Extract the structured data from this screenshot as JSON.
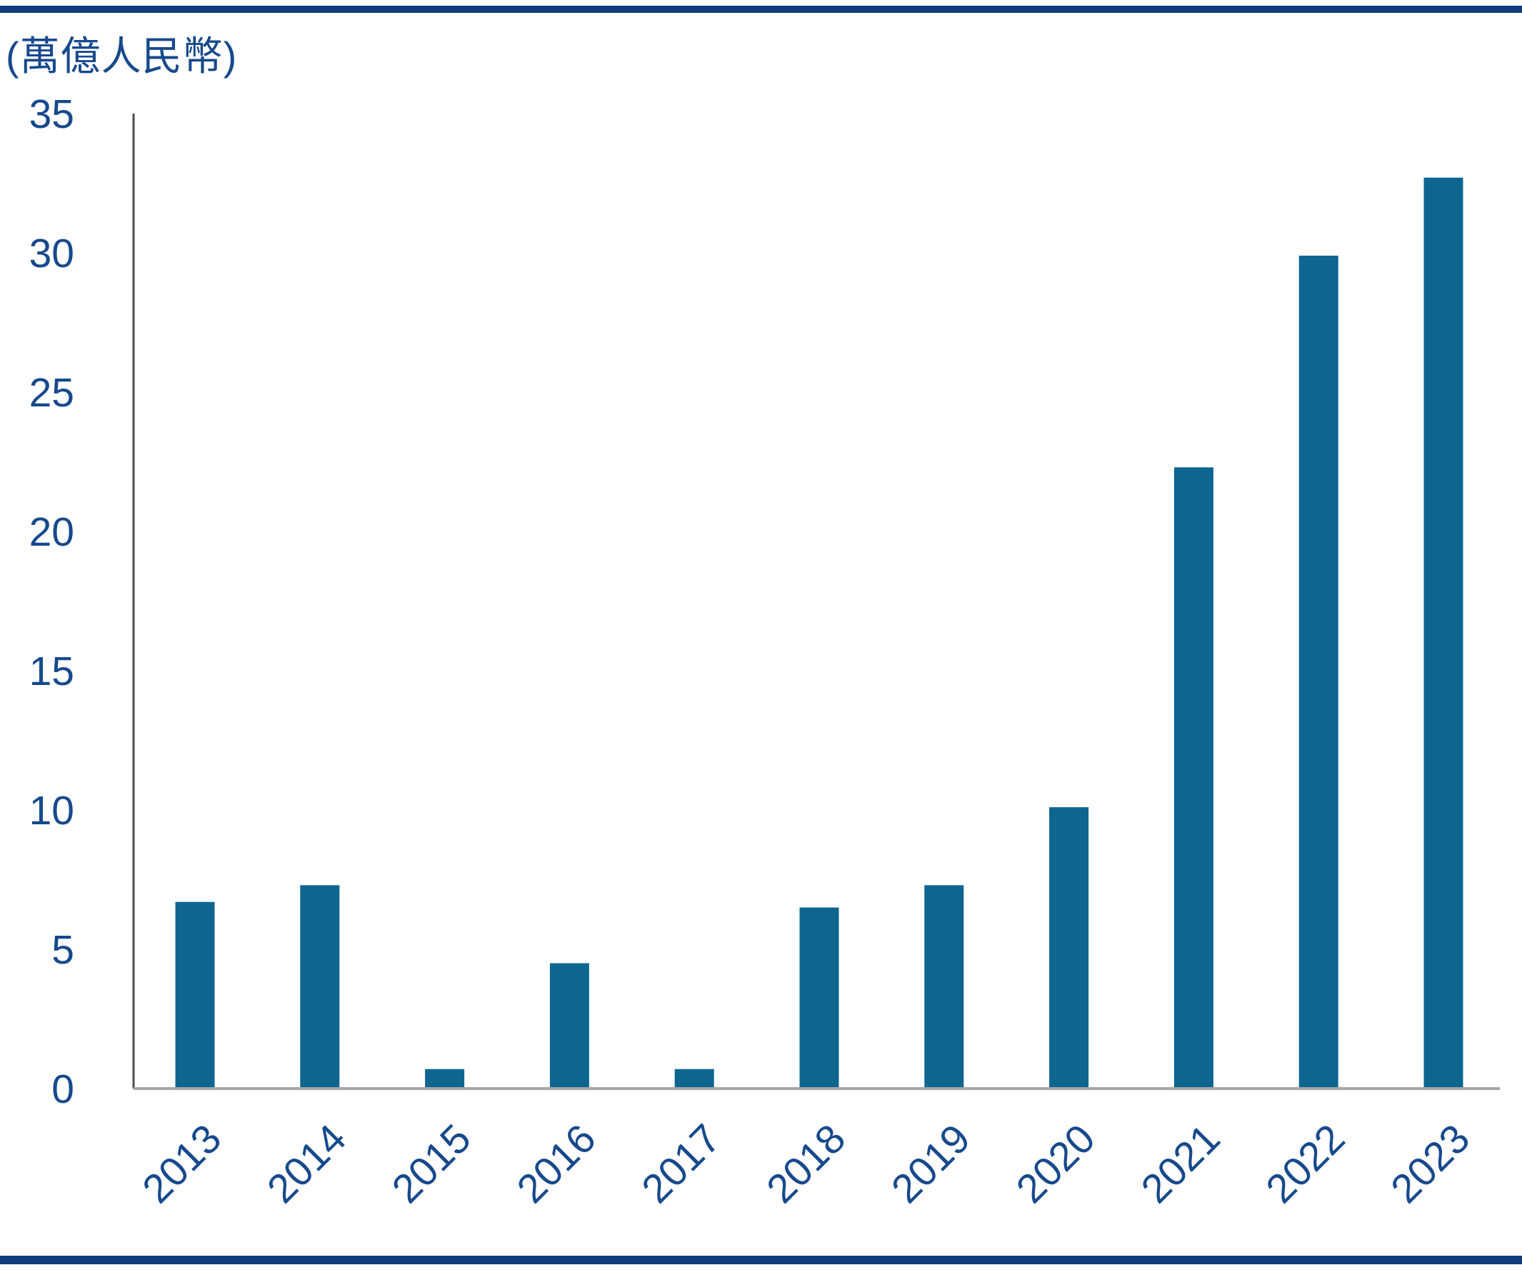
{
  "chart_data": {
    "type": "bar",
    "title": "(萬億人民幣)",
    "categories": [
      "2013",
      "2014",
      "2015",
      "2016",
      "2017",
      "2018",
      "2019",
      "2020",
      "2021",
      "2022",
      "2023"
    ],
    "values": [
      6.7,
      7.3,
      0.7,
      4.5,
      0.7,
      6.5,
      7.3,
      10.1,
      22.3,
      29.9,
      32.7
    ],
    "xlabel": "",
    "ylabel": "(萬億人民幣)",
    "ylim": [
      0,
      35
    ],
    "yticks": [
      0,
      5,
      10,
      15,
      20,
      25,
      30,
      35
    ],
    "grid": false,
    "legend_position": "none",
    "x_label_rotation_deg": -45,
    "colors": {
      "bar": "#0d6590",
      "tick_label": "#17498c",
      "title_text": "#17498c",
      "vertical_axis_line": "#4d4d4d",
      "baseline": "#a6a6a6",
      "horizontal_rule": "#0e3c7c",
      "background": "#ffffff"
    }
  }
}
